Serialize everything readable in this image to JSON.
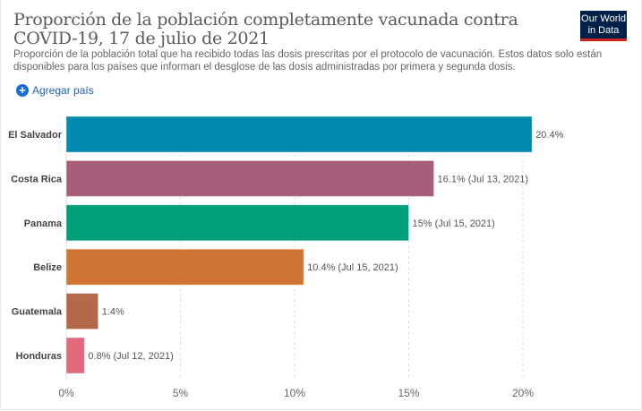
{
  "header": {
    "title": "Proporción de la población completamente vacunada contra COVID-19, 17 de julio de 2021",
    "subtitle": "Proporción de la población total que ha recibido todas las dosis prescritas por el protocolo de vacunación. Estos datos solo están disponibles para los países que informan el desglose de las dosis administradas por primera y segunda dosis.",
    "logo_line1": "Our World",
    "logo_line2": "in Data",
    "add_country_label": "Agregar país"
  },
  "chart_data": {
    "type": "bar",
    "orientation": "horizontal",
    "categories": [
      "El Salvador",
      "Costa Rica",
      "Panama",
      "Belize",
      "Guatemala",
      "Honduras"
    ],
    "values": [
      20.4,
      16.1,
      15,
      10.4,
      1.4,
      0.8
    ],
    "data_labels": [
      "20.4%",
      "16.1% (Jul 13, 2021)",
      "15% (Jul 15, 2021)",
      "10.4% (Jul 15, 2021)",
      "1.4%",
      "0.8% (Jul 12, 2021)"
    ],
    "colors": [
      "#0289ae",
      "#a65e7b",
      "#019e7c",
      "#cf7433",
      "#b46a4a",
      "#e06a7b"
    ],
    "xlim": [
      0,
      20
    ],
    "xticks": [
      0,
      5,
      10,
      15,
      20
    ],
    "xtick_labels": [
      "0%",
      "5%",
      "10%",
      "15%",
      "20%"
    ],
    "grid": "vertical dashed"
  }
}
